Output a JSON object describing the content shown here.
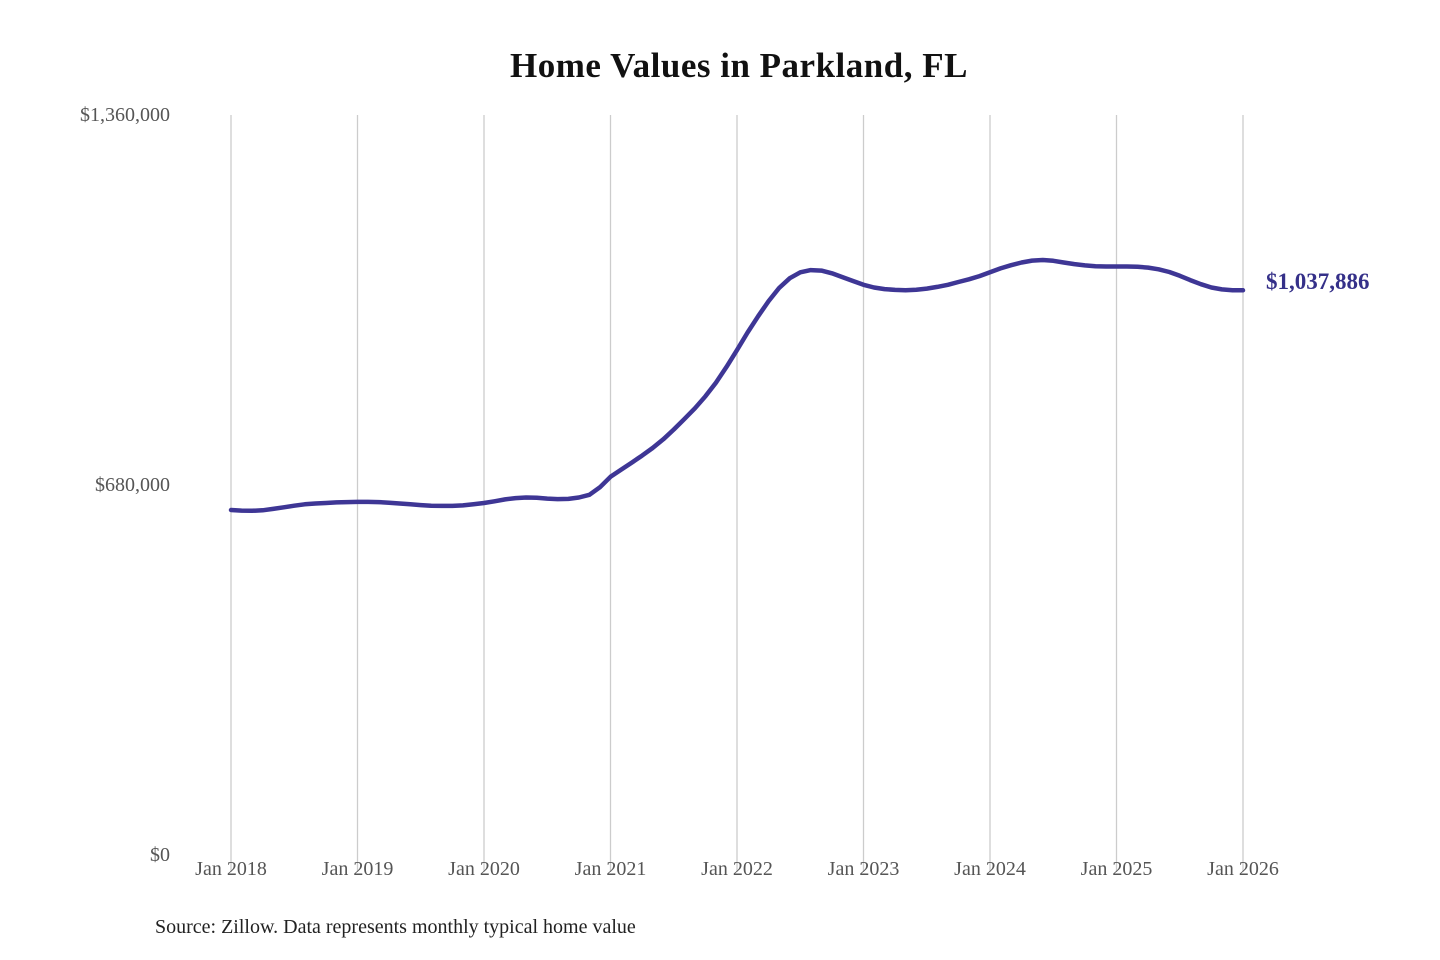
{
  "header": {
    "title": "Home Values in Parkland, FL"
  },
  "annotation": {
    "latest_value_label": "$1,037,886"
  },
  "footer": {
    "source_note": "Source: Zillow. Data represents monthly typical home value"
  },
  "colors": {
    "line": "#3E3695",
    "annotation_text": "#353089",
    "grid": "#cccccc",
    "axis_label": "#555555",
    "title_text": "#111111",
    "source_text": "#222222",
    "background": "#ffffff"
  },
  "chart_data": {
    "type": "line",
    "title": "Home Values in Parkland, FL",
    "xlabel": "",
    "ylabel": "",
    "grid": "vertical-only",
    "legend": "none",
    "xlim": [
      2018.0,
      2026.083
    ],
    "ylim": [
      0,
      1360000
    ],
    "x_tick_years": [
      2018,
      2019,
      2020,
      2021,
      2022,
      2023,
      2024,
      2025,
      2026
    ],
    "x_tick_labels": [
      "Jan 2018",
      "Jan 2019",
      "Jan 2020",
      "Jan 2021",
      "Jan 2022",
      "Jan 2023",
      "Jan 2024",
      "Jan 2025",
      "Jan 2026"
    ],
    "y_tick_values": [
      1360000,
      680000,
      0
    ],
    "y_tick_labels": [
      "$1,360,000",
      "$680,000",
      "$0"
    ],
    "latest_value": 1037886,
    "series": [
      {
        "name": "Monthly typical home value",
        "color": "#3E3695",
        "points": [
          [
            2018.0,
            634000
          ],
          [
            2018.083,
            633000
          ],
          [
            2018.167,
            632500
          ],
          [
            2018.25,
            633500
          ],
          [
            2018.333,
            636000
          ],
          [
            2018.417,
            639000
          ],
          [
            2018.5,
            642000
          ],
          [
            2018.583,
            644500
          ],
          [
            2018.667,
            646000
          ],
          [
            2018.75,
            647000
          ],
          [
            2018.833,
            648000
          ],
          [
            2018.917,
            648500
          ],
          [
            2019.0,
            649000
          ],
          [
            2019.083,
            649000
          ],
          [
            2019.167,
            648500
          ],
          [
            2019.25,
            647500
          ],
          [
            2019.333,
            646000
          ],
          [
            2019.417,
            644500
          ],
          [
            2019.5,
            643000
          ],
          [
            2019.583,
            642000
          ],
          [
            2019.667,
            641500
          ],
          [
            2019.75,
            641500
          ],
          [
            2019.833,
            642500
          ],
          [
            2019.917,
            644500
          ],
          [
            2020.0,
            647000
          ],
          [
            2020.083,
            650000
          ],
          [
            2020.167,
            653500
          ],
          [
            2020.25,
            656000
          ],
          [
            2020.333,
            657000
          ],
          [
            2020.417,
            656500
          ],
          [
            2020.5,
            655000
          ],
          [
            2020.583,
            654000
          ],
          [
            2020.667,
            654500
          ],
          [
            2020.75,
            657000
          ],
          [
            2020.833,
            662000
          ],
          [
            2020.917,
            676000
          ],
          [
            2021.0,
            695000
          ],
          [
            2021.083,
            708000
          ],
          [
            2021.167,
            721000
          ],
          [
            2021.25,
            734000
          ],
          [
            2021.333,
            748000
          ],
          [
            2021.417,
            764000
          ],
          [
            2021.5,
            782000
          ],
          [
            2021.583,
            801000
          ],
          [
            2021.667,
            821000
          ],
          [
            2021.75,
            843000
          ],
          [
            2021.833,
            868000
          ],
          [
            2021.917,
            897000
          ],
          [
            2022.0,
            928000
          ],
          [
            2022.083,
            960000
          ],
          [
            2022.167,
            990000
          ],
          [
            2022.25,
            1018000
          ],
          [
            2022.333,
            1042000
          ],
          [
            2022.417,
            1060000
          ],
          [
            2022.5,
            1071000
          ],
          [
            2022.583,
            1075000
          ],
          [
            2022.667,
            1074000
          ],
          [
            2022.75,
            1069000
          ],
          [
            2022.833,
            1062000
          ],
          [
            2022.917,
            1055000
          ],
          [
            2023.0,
            1048000
          ],
          [
            2023.083,
            1043000
          ],
          [
            2023.167,
            1040000
          ],
          [
            2023.25,
            1038500
          ],
          [
            2023.333,
            1038000
          ],
          [
            2023.417,
            1039000
          ],
          [
            2023.5,
            1041000
          ],
          [
            2023.583,
            1044000
          ],
          [
            2023.667,
            1048000
          ],
          [
            2023.75,
            1053000
          ],
          [
            2023.833,
            1058000
          ],
          [
            2023.917,
            1064000
          ],
          [
            2024.0,
            1071000
          ],
          [
            2024.083,
            1078000
          ],
          [
            2024.167,
            1084000
          ],
          [
            2024.25,
            1089000
          ],
          [
            2024.333,
            1092500
          ],
          [
            2024.417,
            1093500
          ],
          [
            2024.5,
            1092000
          ],
          [
            2024.583,
            1089000
          ],
          [
            2024.667,
            1086000
          ],
          [
            2024.75,
            1083500
          ],
          [
            2024.833,
            1082000
          ],
          [
            2024.917,
            1081500
          ],
          [
            2025.0,
            1081500
          ],
          [
            2025.083,
            1081500
          ],
          [
            2025.167,
            1081000
          ],
          [
            2025.25,
            1079500
          ],
          [
            2025.333,
            1076500
          ],
          [
            2025.417,
            1071500
          ],
          [
            2025.5,
            1064500
          ],
          [
            2025.583,
            1056500
          ],
          [
            2025.667,
            1049000
          ],
          [
            2025.75,
            1043000
          ],
          [
            2025.833,
            1039500
          ],
          [
            2025.917,
            1038000
          ],
          [
            2026.0,
            1037886
          ]
        ]
      }
    ],
    "source": "Source: Zillow. Data represents monthly typical home value"
  }
}
